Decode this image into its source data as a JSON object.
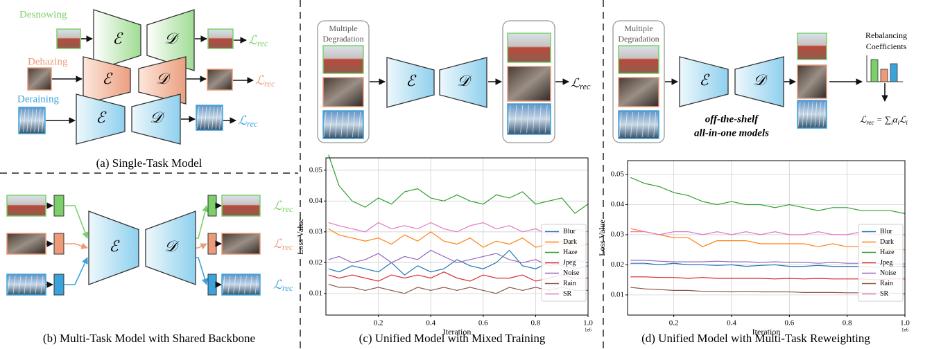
{
  "panel_a": {
    "tasks": [
      "Desnowing",
      "Dehazing",
      "Deraining"
    ],
    "caption": "(a) Single-Task Model"
  },
  "symbols": {
    "encoder": "ℰ",
    "decoder": "𝒟",
    "loss": "ℒ",
    "loss_sub": "rec"
  },
  "panel_b": {
    "caption": "(b) Multi-Task Model with Shared Backbone"
  },
  "panel_c": {
    "input_label": [
      "Multiple",
      "Degradation"
    ],
    "caption": "(c) Unified Model with Mixed Training"
  },
  "panel_d": {
    "input_label": [
      "Multiple",
      "Degradation"
    ],
    "model_label": [
      "off-the-shelf",
      "all-in-one models"
    ],
    "coefficients_label": [
      "Rebalancing",
      "Coefficients"
    ],
    "formula": [
      {
        "text": "ℒ"
      },
      {
        "text": "rec",
        "sub": true
      },
      {
        "text": " = "
      },
      {
        "text": "∑"
      },
      {
        "text": "i",
        "sub": true
      },
      {
        "text": "α"
      },
      {
        "text": "i",
        "sub": true
      },
      {
        "text": "ℒ"
      },
      {
        "text": "i",
        "sub": true
      }
    ],
    "caption": "(d) Unified Model with Multi-Task Reweighting"
  },
  "chart_data": [
    {
      "type": "line",
      "x_label": "Iteration",
      "y_label": "Loss Value",
      "x_offset_label": "1e6",
      "xlim": [
        0,
        1
      ],
      "ylim": [
        0.003,
        0.054
      ],
      "xticks": [
        0.2,
        0.4,
        0.6,
        0.8,
        {
          "value": 1,
          "label": "1.0"
        }
      ],
      "yticks": [
        0.01,
        0.02,
        0.03,
        0.04,
        0.05
      ],
      "grid": true,
      "legend": "lower right",
      "x": [
        0.01,
        0.05,
        0.1,
        0.15,
        0.2,
        0.25,
        0.3,
        0.35,
        0.4,
        0.45,
        0.5,
        0.55,
        0.6,
        0.65,
        0.7,
        0.75,
        0.8,
        0.85,
        0.9,
        0.95,
        1
      ],
      "series": [
        {
          "name": "Blur",
          "color": "#1f77b4",
          "values": [
            0.018,
            0.017,
            0.019,
            0.018,
            0.017,
            0.02,
            0.016,
            0.019,
            0.017,
            0.018,
            0.021,
            0.019,
            0.018,
            0.02,
            0.024,
            0.019,
            0.018,
            0.02,
            0.019,
            0.018,
            0.019
          ]
        },
        {
          "name": "Dark",
          "color": "#ff7f0e",
          "values": [
            0.031,
            0.029,
            0.028,
            0.027,
            0.028,
            0.026,
            0.029,
            0.027,
            0.03,
            0.027,
            0.026,
            0.028,
            0.025,
            0.027,
            0.026,
            0.028,
            0.025,
            0.026,
            0.027,
            0.025,
            0.026
          ]
        },
        {
          "name": "Haze",
          "color": "#2ca02c",
          "values": [
            0.055,
            0.045,
            0.04,
            0.038,
            0.041,
            0.039,
            0.043,
            0.044,
            0.041,
            0.04,
            0.042,
            0.04,
            0.039,
            0.042,
            0.041,
            0.043,
            0.039,
            0.04,
            0.041,
            0.036,
            0.039
          ]
        },
        {
          "name": "Jpeg",
          "color": "#d62728",
          "values": [
            0.016,
            0.015,
            0.016,
            0.015,
            0.014,
            0.016,
            0.015,
            0.016,
            0.015,
            0.017,
            0.015,
            0.014,
            0.016,
            0.015,
            0.015,
            0.016,
            0.014,
            0.015,
            0.016,
            0.015,
            0.015
          ]
        },
        {
          "name": "Noise",
          "color": "#9467bd",
          "values": [
            0.021,
            0.022,
            0.02,
            0.021,
            0.023,
            0.02,
            0.022,
            0.021,
            0.024,
            0.022,
            0.02,
            0.021,
            0.022,
            0.023,
            0.021,
            0.02,
            0.021,
            0.019,
            0.02,
            0.021,
            0.02
          ]
        },
        {
          "name": "Rain",
          "color": "#8c564b",
          "values": [
            0.013,
            0.012,
            0.012,
            0.011,
            0.012,
            0.011,
            0.01,
            0.012,
            0.011,
            0.012,
            0.011,
            0.012,
            0.011,
            0.01,
            0.012,
            0.011,
            0.012,
            0.011,
            0.012,
            0.011,
            0.011
          ]
        },
        {
          "name": "SR",
          "color": "#e377c2",
          "values": [
            0.033,
            0.032,
            0.031,
            0.03,
            0.033,
            0.031,
            0.032,
            0.031,
            0.033,
            0.031,
            0.03,
            0.032,
            0.033,
            0.031,
            0.032,
            0.03,
            0.031,
            0.029,
            0.03,
            0.031,
            0.03
          ]
        }
      ]
    },
    {
      "type": "line",
      "x_label": "Iteration",
      "y_label": "Loss Value",
      "x_offset_label": "1e6",
      "xlim": [
        0.04,
        1
      ],
      "ylim": [
        0.0033,
        0.0546
      ],
      "xticks": [
        0.2,
        0.4,
        0.6,
        0.8,
        {
          "value": 1,
          "label": "1.0"
        }
      ],
      "yticks": [
        0.01,
        0.02,
        0.03,
        0.04,
        0.05
      ],
      "grid": true,
      "legend": "lower right",
      "x": [
        0.05,
        0.1,
        0.15,
        0.2,
        0.25,
        0.3,
        0.35,
        0.4,
        0.45,
        0.5,
        0.55,
        0.6,
        0.65,
        0.7,
        0.75,
        0.8,
        0.85,
        0.9,
        0.95,
        1
      ],
      "series": [
        {
          "name": "Blur",
          "color": "#1f77b4",
          "values": [
            0.0205,
            0.0205,
            0.02,
            0.0205,
            0.02,
            0.02,
            0.0198,
            0.02,
            0.0195,
            0.0198,
            0.02,
            0.0195,
            0.0195,
            0.0198,
            0.0195,
            0.0195,
            0.0195,
            0.0192,
            0.0195,
            0.0195
          ]
        },
        {
          "name": "Dark",
          "color": "#ff7f0e",
          "values": [
            0.032,
            0.031,
            0.03,
            0.029,
            0.029,
            0.026,
            0.028,
            0.028,
            0.028,
            0.027,
            0.027,
            0.027,
            0.027,
            0.026,
            0.027,
            0.026,
            0.026,
            0.026,
            0.025,
            0.025
          ]
        },
        {
          "name": "Haze",
          "color": "#2ca02c",
          "values": [
            0.049,
            0.047,
            0.046,
            0.044,
            0.043,
            0.041,
            0.04,
            0.041,
            0.04,
            0.04,
            0.039,
            0.04,
            0.039,
            0.038,
            0.039,
            0.039,
            0.038,
            0.038,
            0.038,
            0.037
          ]
        },
        {
          "name": "Jpeg",
          "color": "#d62728",
          "values": [
            0.016,
            0.016,
            0.0158,
            0.0158,
            0.0155,
            0.0158,
            0.0155,
            0.0155,
            0.0155,
            0.0155,
            0.0153,
            0.0155,
            0.0153,
            0.0155,
            0.0153,
            0.0153,
            0.0153,
            0.015,
            0.0153,
            0.0153
          ]
        },
        {
          "name": "Noise",
          "color": "#9467bd",
          "values": [
            0.0215,
            0.0215,
            0.0212,
            0.021,
            0.021,
            0.021,
            0.0212,
            0.021,
            0.021,
            0.0208,
            0.021,
            0.0208,
            0.0208,
            0.0205,
            0.0208,
            0.0205,
            0.0205,
            0.0205,
            0.0203,
            0.0203
          ]
        },
        {
          "name": "Rain",
          "color": "#8c564b",
          "values": [
            0.0125,
            0.012,
            0.0118,
            0.0115,
            0.0115,
            0.0112,
            0.0112,
            0.011,
            0.0112,
            0.011,
            0.011,
            0.011,
            0.0108,
            0.0108,
            0.0108,
            0.0107,
            0.0107,
            0.0106,
            0.0106,
            0.0105
          ]
        },
        {
          "name": "SR",
          "color": "#e377c2",
          "values": [
            0.031,
            0.031,
            0.03,
            0.031,
            0.031,
            0.03,
            0.031,
            0.03,
            0.031,
            0.03,
            0.031,
            0.03,
            0.03,
            0.031,
            0.03,
            0.03,
            0.031,
            0.03,
            0.03,
            0.03
          ]
        }
      ]
    }
  ]
}
